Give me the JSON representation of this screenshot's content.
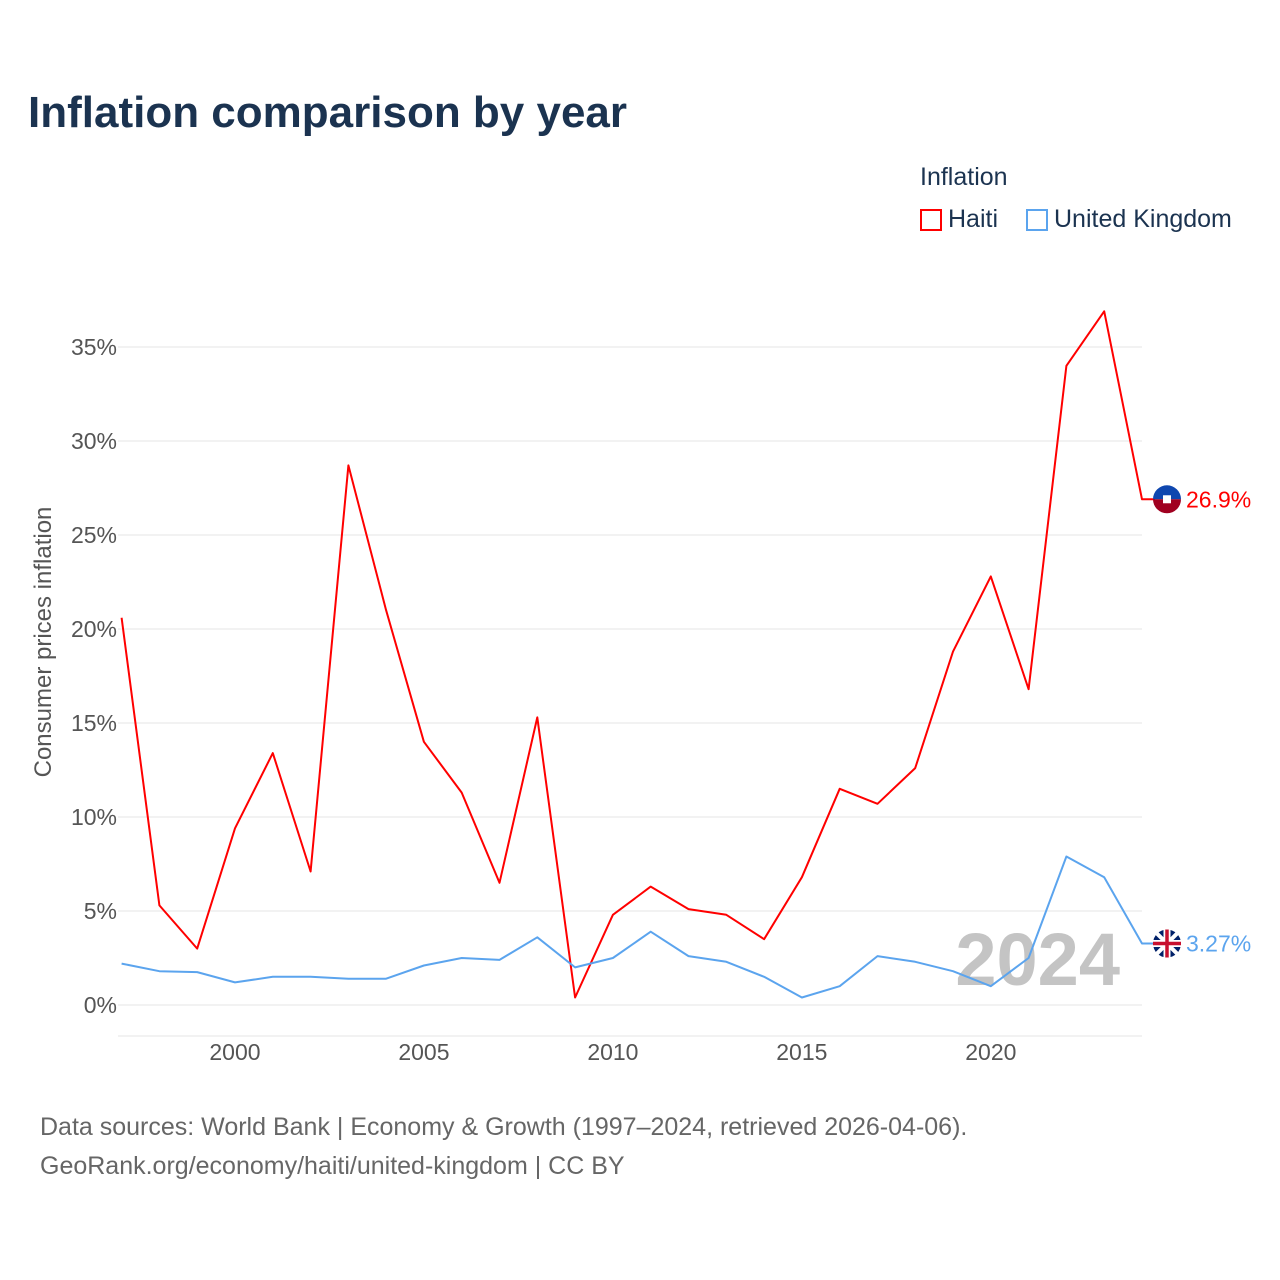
{
  "title": "Inflation comparison by year",
  "legend": {
    "title": "Inflation",
    "items": [
      {
        "label": "Haiti",
        "color": "#ff0000"
      },
      {
        "label": "United Kingdom",
        "color": "#5ba4ee"
      }
    ]
  },
  "footer": {
    "line1": "Data sources: World Bank | Economy & Growth (1997–2024, retrieved 2026-04-06).",
    "line2": "GeoRank.org/economy/haiti/united-kingdom | CC BY"
  },
  "chart_data": {
    "type": "line",
    "title": "Inflation comparison by year",
    "xlabel": "",
    "ylabel": "Consumer prices inflation",
    "x": [
      1997,
      1998,
      1999,
      2000,
      2001,
      2002,
      2003,
      2004,
      2005,
      2006,
      2007,
      2008,
      2009,
      2010,
      2011,
      2012,
      2013,
      2014,
      2015,
      2016,
      2017,
      2018,
      2019,
      2020,
      2021,
      2022,
      2023,
      2024
    ],
    "xlim": [
      1997,
      2024
    ],
    "ylim": [
      0,
      36.9
    ],
    "xticks": [
      2000,
      2005,
      2010,
      2015,
      2020
    ],
    "yticks": [
      0,
      5,
      10,
      15,
      20,
      25,
      30,
      35
    ],
    "ytick_labels": [
      "0%",
      "5%",
      "10%",
      "15%",
      "20%",
      "25%",
      "30%",
      "35%"
    ],
    "grid": true,
    "legend_position": "top-right",
    "watermark_year": "2024",
    "series": [
      {
        "name": "Haiti",
        "color": "#ff0000",
        "end_label": "26.9%",
        "values": [
          20.6,
          5.3,
          3.0,
          9.4,
          13.4,
          7.1,
          28.7,
          21.0,
          14.0,
          11.3,
          6.5,
          15.3,
          0.4,
          4.8,
          6.3,
          5.1,
          4.8,
          3.5,
          6.8,
          11.5,
          10.7,
          12.6,
          18.8,
          22.8,
          16.8,
          34.0,
          36.9,
          26.9
        ]
      },
      {
        "name": "United Kingdom",
        "color": "#5ba4ee",
        "end_label": "3.27%",
        "values": [
          2.2,
          1.8,
          1.75,
          1.2,
          1.5,
          1.5,
          1.4,
          1.4,
          2.1,
          2.5,
          2.4,
          3.6,
          2.0,
          2.5,
          3.9,
          2.6,
          2.3,
          1.5,
          0.4,
          1.0,
          2.6,
          2.3,
          1.8,
          1.0,
          2.5,
          7.9,
          6.8,
          3.27
        ]
      }
    ]
  }
}
